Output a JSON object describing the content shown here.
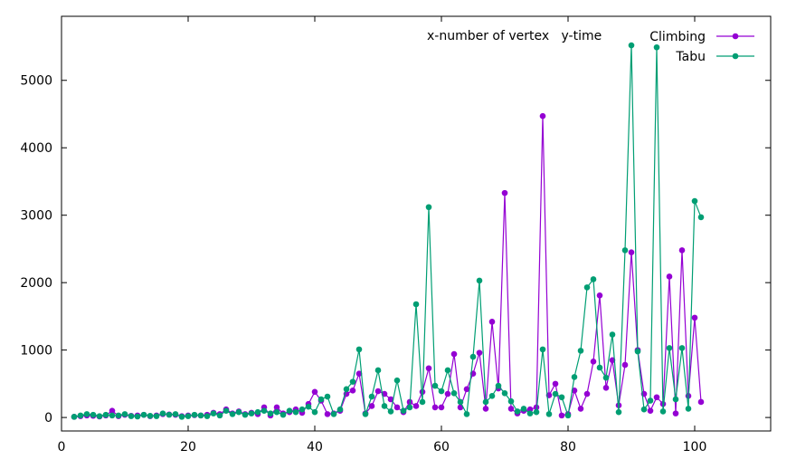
{
  "chart_data": {
    "type": "line",
    "title": "",
    "annotation": "x-number of vertex   y-time",
    "xlabel": "",
    "ylabel": "",
    "xlim": [
      0,
      112
    ],
    "ylim": [
      -200,
      5950
    ],
    "x_ticks": [
      0,
      20,
      40,
      60,
      80,
      100
    ],
    "y_ticks": [
      0,
      1000,
      2000,
      3000,
      4000,
      5000
    ],
    "grid": false,
    "legend_position": "top-right",
    "series": [
      {
        "name": "Climbing",
        "color": "#9400d3",
        "points": [
          [
            2,
            10
          ],
          [
            3,
            20
          ],
          [
            4,
            30
          ],
          [
            5,
            25
          ],
          [
            6,
            15
          ],
          [
            7,
            30
          ],
          [
            8,
            100
          ],
          [
            9,
            20
          ],
          [
            10,
            40
          ],
          [
            11,
            25
          ],
          [
            12,
            30
          ],
          [
            13,
            40
          ],
          [
            14,
            20
          ],
          [
            15,
            30
          ],
          [
            16,
            50
          ],
          [
            17,
            45
          ],
          [
            18,
            40
          ],
          [
            19,
            20
          ],
          [
            20,
            30
          ],
          [
            21,
            35
          ],
          [
            22,
            30
          ],
          [
            23,
            40
          ],
          [
            24,
            70
          ],
          [
            25,
            50
          ],
          [
            26,
            120
          ],
          [
            27,
            60
          ],
          [
            28,
            90
          ],
          [
            29,
            50
          ],
          [
            30,
            70
          ],
          [
            31,
            50
          ],
          [
            32,
            150
          ],
          [
            33,
            30
          ],
          [
            34,
            150
          ],
          [
            35,
            60
          ],
          [
            36,
            80
          ],
          [
            37,
            120
          ],
          [
            38,
            70
          ],
          [
            39,
            200
          ],
          [
            40,
            380
          ],
          [
            41,
            250
          ],
          [
            42,
            50
          ],
          [
            43,
            60
          ],
          [
            44,
            100
          ],
          [
            45,
            350
          ],
          [
            46,
            400
          ],
          [
            47,
            650
          ],
          [
            48,
            60
          ],
          [
            49,
            170
          ],
          [
            50,
            390
          ],
          [
            51,
            350
          ],
          [
            52,
            270
          ],
          [
            53,
            150
          ],
          [
            54,
            80
          ],
          [
            55,
            230
          ],
          [
            56,
            170
          ],
          [
            57,
            380
          ],
          [
            58,
            730
          ],
          [
            59,
            150
          ],
          [
            60,
            150
          ],
          [
            61,
            350
          ],
          [
            62,
            940
          ],
          [
            63,
            150
          ],
          [
            64,
            420
          ],
          [
            65,
            650
          ],
          [
            66,
            960
          ],
          [
            67,
            130
          ],
          [
            68,
            1420
          ],
          [
            69,
            430
          ],
          [
            70,
            3330
          ],
          [
            71,
            130
          ],
          [
            72,
            60
          ],
          [
            73,
            100
          ],
          [
            74,
            120
          ],
          [
            75,
            150
          ],
          [
            76,
            4470
          ],
          [
            77,
            330
          ],
          [
            78,
            500
          ],
          [
            79,
            30
          ],
          [
            80,
            50
          ],
          [
            81,
            400
          ],
          [
            82,
            130
          ],
          [
            83,
            350
          ],
          [
            84,
            830
          ],
          [
            85,
            1810
          ],
          [
            86,
            440
          ],
          [
            87,
            850
          ],
          [
            88,
            180
          ],
          [
            89,
            780
          ],
          [
            90,
            2450
          ],
          [
            91,
            1000
          ],
          [
            92,
            350
          ],
          [
            93,
            100
          ],
          [
            94,
            300
          ],
          [
            95,
            200
          ],
          [
            96,
            2090
          ],
          [
            97,
            60
          ],
          [
            98,
            2480
          ],
          [
            99,
            320
          ],
          [
            100,
            1480
          ],
          [
            101,
            230
          ]
        ]
      },
      {
        "name": "Tabu",
        "color": "#009e73",
        "points": [
          [
            2,
            10
          ],
          [
            3,
            30
          ],
          [
            4,
            50
          ],
          [
            5,
            40
          ],
          [
            6,
            20
          ],
          [
            7,
            40
          ],
          [
            8,
            30
          ],
          [
            9,
            30
          ],
          [
            10,
            50
          ],
          [
            11,
            20
          ],
          [
            12,
            15
          ],
          [
            13,
            40
          ],
          [
            14,
            25
          ],
          [
            15,
            20
          ],
          [
            16,
            60
          ],
          [
            17,
            40
          ],
          [
            18,
            50
          ],
          [
            19,
            10
          ],
          [
            20,
            20
          ],
          [
            21,
            40
          ],
          [
            22,
            30
          ],
          [
            23,
            20
          ],
          [
            24,
            60
          ],
          [
            25,
            30
          ],
          [
            26,
            100
          ],
          [
            27,
            50
          ],
          [
            28,
            80
          ],
          [
            29,
            40
          ],
          [
            30,
            60
          ],
          [
            31,
            80
          ],
          [
            32,
            100
          ],
          [
            33,
            60
          ],
          [
            34,
            80
          ],
          [
            35,
            40
          ],
          [
            36,
            100
          ],
          [
            37,
            80
          ],
          [
            38,
            120
          ],
          [
            39,
            160
          ],
          [
            40,
            80
          ],
          [
            41,
            270
          ],
          [
            42,
            310
          ],
          [
            43,
            50
          ],
          [
            44,
            120
          ],
          [
            45,
            420
          ],
          [
            46,
            530
          ],
          [
            47,
            1010
          ],
          [
            48,
            50
          ],
          [
            49,
            310
          ],
          [
            50,
            700
          ],
          [
            51,
            170
          ],
          [
            52,
            90
          ],
          [
            53,
            550
          ],
          [
            54,
            100
          ],
          [
            55,
            150
          ],
          [
            56,
            1680
          ],
          [
            57,
            230
          ],
          [
            58,
            3120
          ],
          [
            59,
            470
          ],
          [
            60,
            390
          ],
          [
            61,
            700
          ],
          [
            62,
            360
          ],
          [
            63,
            230
          ],
          [
            64,
            50
          ],
          [
            65,
            900
          ],
          [
            66,
            2030
          ],
          [
            67,
            230
          ],
          [
            68,
            320
          ],
          [
            69,
            470
          ],
          [
            70,
            360
          ],
          [
            71,
            240
          ],
          [
            72,
            90
          ],
          [
            73,
            130
          ],
          [
            74,
            60
          ],
          [
            75,
            80
          ],
          [
            76,
            1010
          ],
          [
            77,
            50
          ],
          [
            78,
            350
          ],
          [
            79,
            300
          ],
          [
            80,
            30
          ],
          [
            81,
            600
          ],
          [
            82,
            990
          ],
          [
            83,
            1930
          ],
          [
            84,
            2050
          ],
          [
            85,
            740
          ],
          [
            86,
            590
          ],
          [
            87,
            1230
          ],
          [
            88,
            80
          ],
          [
            89,
            2480
          ],
          [
            90,
            5520
          ],
          [
            91,
            980
          ],
          [
            92,
            120
          ],
          [
            93,
            250
          ],
          [
            94,
            5490
          ],
          [
            95,
            90
          ],
          [
            96,
            1030
          ],
          [
            97,
            270
          ],
          [
            98,
            1030
          ],
          [
            99,
            130
          ],
          [
            100,
            3210
          ],
          [
            101,
            2970
          ]
        ]
      }
    ]
  }
}
